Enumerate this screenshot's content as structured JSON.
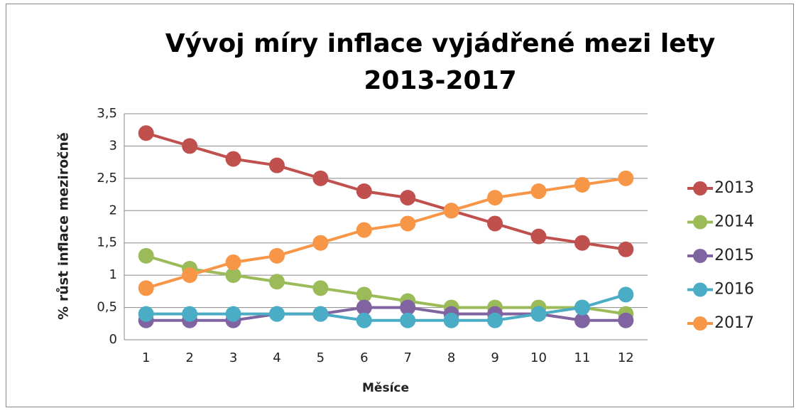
{
  "chart_data": {
    "type": "line",
    "title": "Vývoj míry inflace vyjádřené mezi lety 2013-2017",
    "x_label": "Měsíce",
    "y_label": "% růst inflace meziročně",
    "categories": [
      "1",
      "2",
      "3",
      "4",
      "5",
      "6",
      "7",
      "8",
      "9",
      "10",
      "11",
      "12"
    ],
    "series": [
      {
        "name": "2013",
        "color": "#c0504d",
        "values": [
          3.2,
          3.0,
          2.8,
          2.7,
          2.5,
          2.3,
          2.2,
          2.0,
          1.8,
          1.6,
          1.5,
          1.4
        ]
      },
      {
        "name": "2014",
        "color": "#9bbb59",
        "values": [
          1.3,
          1.1,
          1.0,
          0.9,
          0.8,
          0.7,
          0.6,
          0.5,
          0.5,
          0.5,
          0.5,
          0.4
        ]
      },
      {
        "name": "2015",
        "color": "#8064a2",
        "values": [
          0.3,
          0.3,
          0.3,
          0.4,
          0.4,
          0.5,
          0.5,
          0.4,
          0.4,
          0.4,
          0.3,
          0.3
        ]
      },
      {
        "name": "2016",
        "color": "#4bacc6",
        "values": [
          0.4,
          0.4,
          0.4,
          0.4,
          0.4,
          0.3,
          0.3,
          0.3,
          0.3,
          0.4,
          0.5,
          0.7
        ]
      },
      {
        "name": "2017",
        "color": "#f79646",
        "values": [
          0.8,
          1.0,
          1.2,
          1.3,
          1.5,
          1.7,
          1.8,
          2.0,
          2.2,
          2.3,
          2.4,
          2.5
        ]
      }
    ],
    "ylim": [
      0,
      3.5
    ],
    "yticks": [
      0,
      {
        "value": 0.5,
        "label": "0,5"
      },
      1,
      {
        "value": 1.5,
        "label": "1,5"
      },
      2,
      {
        "value": 2.5,
        "label": "2,5"
      },
      3,
      {
        "value": 3.5,
        "label": "3,5"
      }
    ],
    "grid": true,
    "legend": "right"
  }
}
